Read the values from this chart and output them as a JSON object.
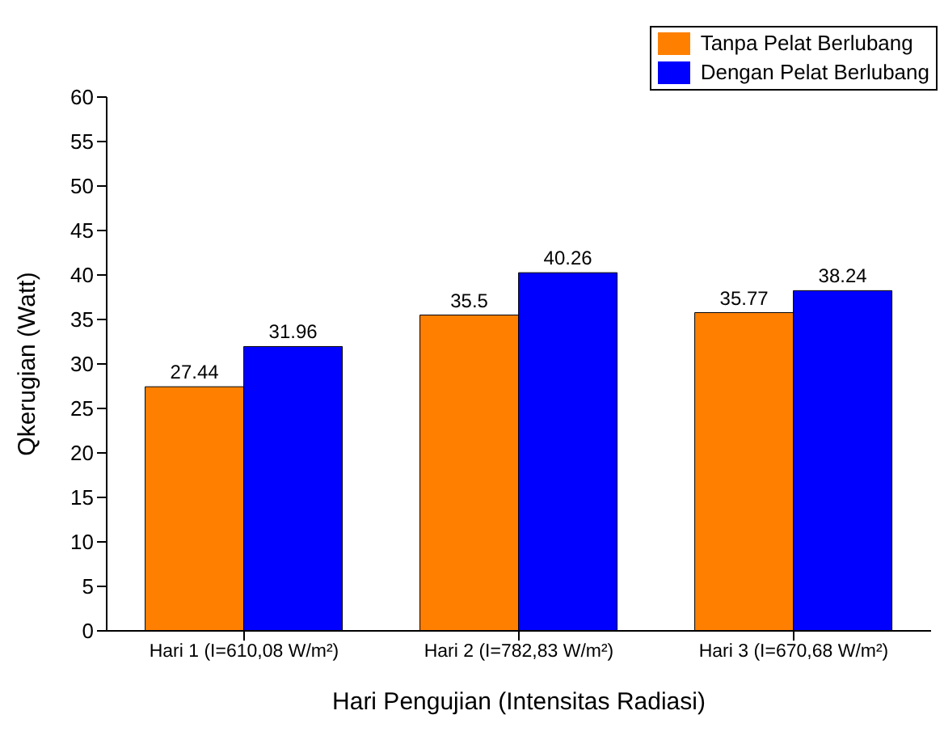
{
  "chart_data": {
    "type": "bar",
    "xlabel": "Hari Pengujian (Intensitas Radiasi)",
    "ylabel": "Qkerugian (Watt)",
    "categories": [
      "Hari 1 (I=610,08 W/m²)",
      "Hari 2 (I=782,83 W/m²)",
      "Hari 3 (I=670,68 W/m²)"
    ],
    "series": [
      {
        "name": "Tanpa Pelat Berlubang",
        "color": "#ff8000",
        "values": [
          27.44,
          35.5,
          35.77
        ]
      },
      {
        "name": "Dengan Pelat Berlubang",
        "color": "#0000ff",
        "values": [
          31.96,
          40.26,
          38.24
        ]
      }
    ],
    "ylim": [
      0,
      60
    ],
    "yticks": [
      0,
      5,
      10,
      15,
      20,
      25,
      30,
      35,
      40,
      45,
      50,
      55,
      60
    ],
    "grid": false,
    "legend": "top right",
    "data_labels": true
  }
}
